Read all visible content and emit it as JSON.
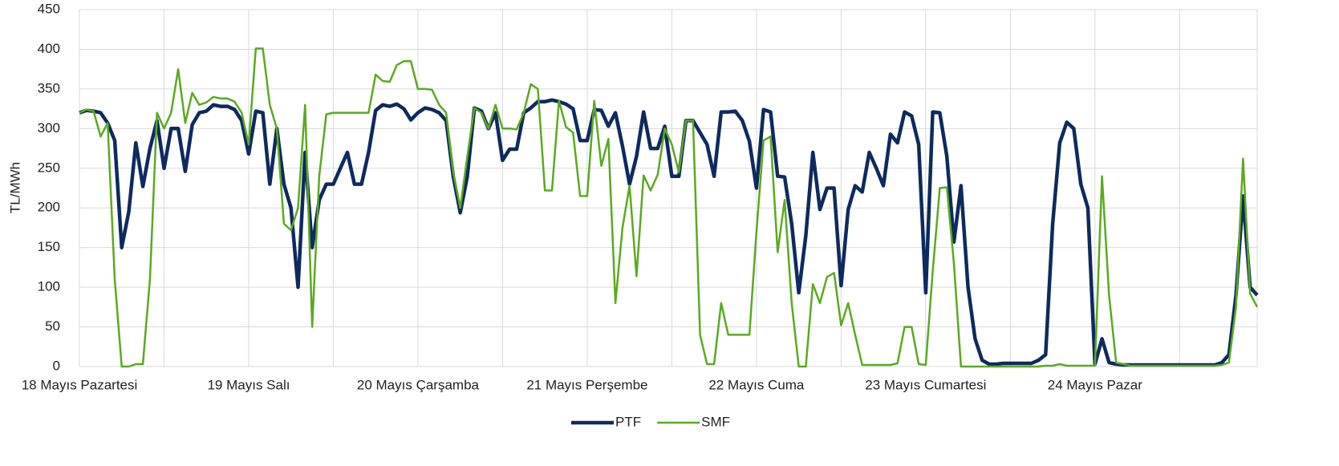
{
  "chart_data": {
    "type": "line",
    "y_label": "TL/MWh",
    "categories": [
      "18 Mayıs Pazartesi",
      null,
      null,
      null,
      null,
      null,
      null,
      null,
      null,
      null,
      null,
      null,
      null,
      null,
      null,
      null,
      null,
      null,
      null,
      null,
      null,
      null,
      null,
      null,
      "19 Mayıs Salı",
      null,
      null,
      null,
      null,
      null,
      null,
      null,
      null,
      null,
      null,
      null,
      null,
      null,
      null,
      null,
      null,
      null,
      null,
      null,
      null,
      null,
      null,
      null,
      "20 Mayıs Çarşamba",
      null,
      null,
      null,
      null,
      null,
      null,
      null,
      null,
      null,
      null,
      null,
      null,
      null,
      null,
      null,
      null,
      null,
      null,
      null,
      null,
      null,
      null,
      null,
      "21 Mayıs Perşembe",
      null,
      null,
      null,
      null,
      null,
      null,
      null,
      null,
      null,
      null,
      null,
      null,
      null,
      null,
      null,
      null,
      null,
      null,
      null,
      null,
      null,
      null,
      null,
      "22 Mayıs Cuma",
      null,
      null,
      null,
      null,
      null,
      null,
      null,
      null,
      null,
      null,
      null,
      null,
      null,
      null,
      null,
      null,
      null,
      null,
      null,
      null,
      null,
      null,
      null,
      "23 Mayıs Cumartesi",
      null,
      null,
      null,
      null,
      null,
      null,
      null,
      null,
      null,
      null,
      null,
      null,
      null,
      null,
      null,
      null,
      null,
      null,
      null,
      null,
      null,
      null,
      null,
      "24 Mayıs Pazar",
      null,
      null,
      null,
      null,
      null,
      null,
      null,
      null,
      null,
      null,
      null,
      null,
      null,
      null,
      null,
      null,
      null,
      null,
      null,
      null,
      null,
      null,
      null
    ],
    "series": [
      {
        "name": "PTF",
        "color": "#0e2a5e",
        "values": [
          320,
          323,
          322,
          320,
          307,
          285,
          150,
          195,
          282,
          227,
          275,
          310,
          250,
          300,
          300,
          246,
          305,
          320,
          322,
          330,
          328,
          328,
          324,
          310,
          268,
          322,
          320,
          230,
          300,
          230,
          200,
          100,
          270,
          150,
          210,
          230,
          230,
          250,
          270,
          230,
          230,
          270,
          323,
          330,
          328,
          331,
          325,
          311,
          320,
          326,
          324,
          320,
          310,
          240,
          194,
          240,
          326,
          322,
          300,
          320,
          260,
          274,
          274,
          320,
          326,
          334,
          334,
          336,
          334,
          331,
          325,
          285,
          285,
          324,
          323,
          303,
          320,
          278,
          230,
          265,
          321,
          275,
          275,
          303,
          240,
          240,
          310,
          310,
          295,
          280,
          240,
          321,
          321,
          322,
          310,
          284,
          225,
          324,
          321,
          240,
          239,
          180,
          93,
          165,
          270,
          198,
          225,
          225,
          102,
          198,
          228,
          220,
          270,
          250,
          228,
          293,
          282,
          321,
          316,
          280,
          93,
          321,
          320,
          265,
          157,
          228,
          100,
          35,
          8,
          3,
          3,
          4,
          4,
          4,
          4,
          4,
          8,
          15,
          180,
          282,
          308,
          300,
          230,
          200,
          3,
          35,
          5,
          3,
          2,
          2,
          2,
          2,
          2,
          2,
          2,
          2,
          2,
          2,
          2,
          2,
          2,
          2,
          5,
          15,
          90,
          215,
          100,
          90
        ]
      },
      {
        "name": "SMF",
        "color": "#5aaa1e",
        "values": [
          320,
          324,
          322,
          290,
          307,
          110,
          0,
          0,
          3,
          3,
          110,
          320,
          300,
          320,
          375,
          307,
          345,
          330,
          333,
          340,
          338,
          338,
          334,
          320,
          280,
          401,
          401,
          330,
          300,
          180,
          172,
          200,
          330,
          50,
          240,
          318,
          320,
          320,
          320,
          320,
          320,
          320,
          368,
          360,
          359,
          380,
          385,
          385,
          350,
          350,
          349,
          330,
          320,
          245,
          200,
          265,
          326,
          320,
          300,
          330,
          300,
          300,
          299,
          320,
          356,
          350,
          222,
          222,
          335,
          302,
          295,
          215,
          215,
          335,
          253,
          287,
          80,
          175,
          228,
          114,
          241,
          222,
          242,
          300,
          280,
          245,
          310,
          310,
          40,
          3,
          3,
          80,
          40,
          40,
          40,
          40,
          170,
          285,
          290,
          144,
          210,
          80,
          0,
          0,
          104,
          80,
          113,
          118,
          52,
          80,
          40,
          2,
          2,
          2,
          2,
          2,
          4,
          50,
          50,
          3,
          2,
          120,
          225,
          226,
          130,
          0,
          0,
          0,
          0,
          0,
          0,
          0,
          0,
          0,
          0,
          0,
          0,
          1,
          1,
          3,
          1,
          1,
          1,
          1,
          1,
          240,
          90,
          5,
          3,
          1,
          1,
          1,
          1,
          1,
          1,
          1,
          1,
          1,
          1,
          1,
          1,
          1,
          2,
          5,
          75,
          262,
          92,
          75
        ]
      }
    ],
    "ylim": [
      0,
      450
    ],
    "yticks": [
      0,
      50,
      100,
      150,
      200,
      250,
      300,
      350,
      400,
      450
    ],
    "grid": true,
    "x_grid_every": 12,
    "legend": "bottom"
  }
}
